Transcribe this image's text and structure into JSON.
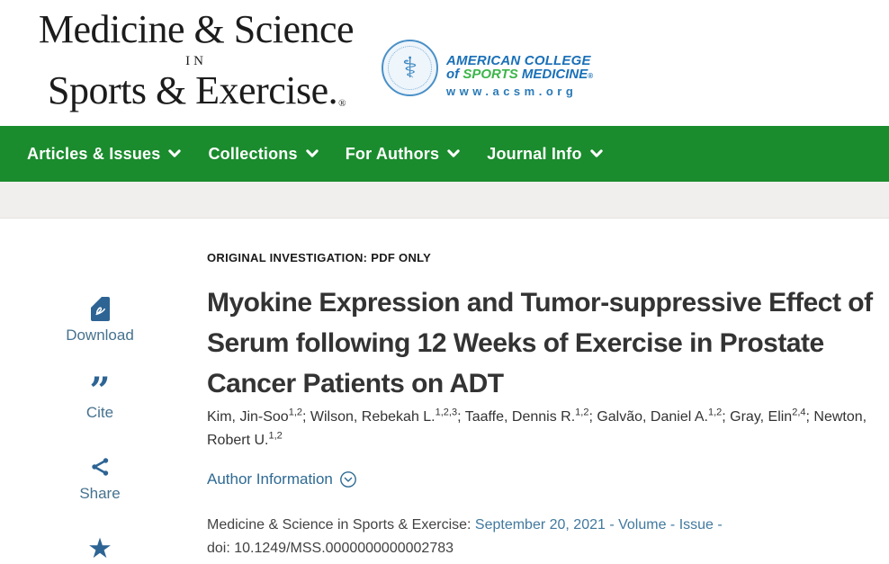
{
  "masthead": {
    "journal_title_line1": "Medicine & Science",
    "journal_title_line2": "IN",
    "journal_title_line3": "Sports & Exercise.",
    "registered_mark": "®",
    "acsm": {
      "seal_glyph": "⚕",
      "line1": "AMERICAN COLLEGE",
      "line2_of": "of ",
      "line2_sports": "SPORTS",
      "line2_medicine": " MEDICINE",
      "registered_mark": "®",
      "line3": "www.acsm.org",
      "brand_blue": "#1a70b8",
      "brand_green": "#3cb54a"
    }
  },
  "nav": {
    "background_color": "#1a8c2d",
    "items": [
      {
        "label": "Articles & Issues"
      },
      {
        "label": "Collections"
      },
      {
        "label": "For Authors"
      },
      {
        "label": "Journal Info"
      }
    ]
  },
  "sidebar": {
    "accent_color": "#2d6494",
    "items": [
      {
        "label": "Download",
        "icon": "pdf-download-icon"
      },
      {
        "label": "Cite",
        "icon": "quote-icon",
        "glyph": "”"
      },
      {
        "label": "Share",
        "icon": "share-icon"
      },
      {
        "label": "",
        "icon": "star-icon",
        "glyph": "★"
      }
    ]
  },
  "article": {
    "eyebrow": "ORIGINAL INVESTIGATION: PDF ONLY",
    "title": "Myokine Expression and Tumor-suppressive Effect of Serum following 12 Weeks of Exercise in Prostate Cancer Patients on ADT",
    "authors": [
      {
        "name": "Kim, Jin-Soo",
        "affiliations": "1,2"
      },
      {
        "name": "Wilson, Rebekah L.",
        "affiliations": "1,2,3"
      },
      {
        "name": "Taaffe, Dennis R.",
        "affiliations": "1,2"
      },
      {
        "name": "Galvão, Daniel A.",
        "affiliations": "1,2"
      },
      {
        "name": "Gray, Elin",
        "affiliations": "2,4"
      },
      {
        "name": "Newton, Robert U.",
        "affiliations": "1,2"
      }
    ],
    "author_info_label": "Author Information",
    "citation": {
      "journal": "Medicine & Science in Sports & Exercise: ",
      "issue_info": "September 20, 2021 - Volume - Issue -",
      "doi": "doi: 10.1249/MSS.0000000000002783",
      "link_color": "#41799f"
    }
  }
}
